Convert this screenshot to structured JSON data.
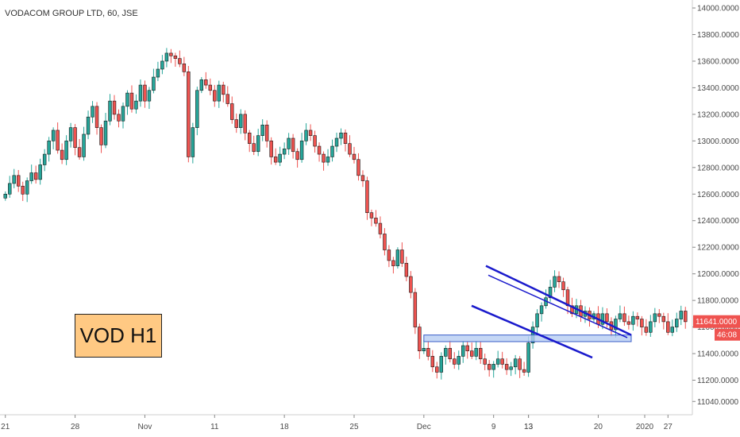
{
  "chart_data": {
    "type": "candlestick",
    "title": "VODACOM GROUP LTD, 60, JSE",
    "annotation_label": "VOD H1",
    "ylim": [
      10940,
      14060
    ],
    "y_ticks": [
      "14000.0000",
      "13800.0000",
      "13600.0000",
      "13400.0000",
      "13200.0000",
      "13000.0000",
      "12800.0000",
      "12600.0000",
      "12400.0000",
      "12200.0000",
      "12000.0000",
      "11800.0000",
      "11600.0000",
      "11400.0000",
      "11200.0000",
      "11040.0000"
    ],
    "x_ticks": [
      "21",
      "28",
      "Nov",
      "11",
      "18",
      "25",
      "Dec",
      "9",
      "13",
      "20",
      "27",
      "2020",
      "13"
    ],
    "last_price_label": "11641.0000",
    "countdown_label": "46:08",
    "colors": {
      "up": "#26a69a",
      "down": "#ef5350",
      "wick_dark": "#222222",
      "pattern_line": "#1a1acc",
      "support_zone": "#b6cdf2",
      "support_border": "#3b5fc9",
      "price_badge": "#ef5350",
      "timer_badge": "#ef5350"
    },
    "series": [
      {
        "points": [
          [
            "21",
            12600
          ],
          [
            "",
            12680
          ],
          [
            "",
            12740
          ],
          [
            "",
            12660
          ],
          [
            "",
            12600
          ],
          [
            "",
            12700
          ],
          [
            "",
            12760
          ],
          [
            "",
            12710
          ],
          [
            "",
            12820
          ],
          [
            "",
            12900
          ],
          [
            "",
            13000
          ],
          [
            "",
            13080
          ],
          [
            "",
            12930
          ],
          [
            "",
            12860
          ],
          [
            "",
            13000
          ],
          [
            "",
            13100
          ],
          [
            "28",
            12950
          ],
          [
            "",
            12880
          ],
          [
            "",
            13050
          ],
          [
            "",
            13180
          ],
          [
            "",
            13260
          ],
          [
            "",
            13100
          ],
          [
            "",
            12970
          ],
          [
            "",
            13150
          ],
          [
            "",
            13300
          ],
          [
            "",
            13200
          ],
          [
            "",
            13150
          ],
          [
            "",
            13260
          ],
          [
            "",
            13360
          ],
          [
            "",
            13240
          ],
          [
            "",
            13300
          ],
          [
            "",
            13420
          ],
          [
            "Nov",
            13300
          ],
          [
            "",
            13380
          ],
          [
            "",
            13480
          ],
          [
            "",
            13540
          ],
          [
            "",
            13600
          ],
          [
            "",
            13660
          ],
          [
            "",
            13640
          ],
          [
            "",
            13620
          ],
          [
            "",
            13580
          ],
          [
            "",
            13520
          ],
          [
            "",
            12880
          ],
          [
            "",
            13100
          ],
          [
            "",
            13380
          ],
          [
            "",
            13460
          ],
          [
            "",
            13420
          ],
          [
            "",
            13380
          ],
          [
            "11",
            13300
          ],
          [
            "",
            13420
          ],
          [
            "",
            13350
          ],
          [
            "",
            13280
          ],
          [
            "",
            13160
          ],
          [
            "",
            13100
          ],
          [
            "",
            13200
          ],
          [
            "",
            13060
          ],
          [
            "",
            12980
          ],
          [
            "",
            12920
          ],
          [
            "",
            13040
          ],
          [
            "",
            13120
          ],
          [
            "",
            13000
          ],
          [
            "",
            12880
          ],
          [
            "",
            12840
          ],
          [
            "",
            12900
          ],
          [
            "18",
            12940
          ],
          [
            "",
            13020
          ],
          [
            "",
            12920
          ],
          [
            "",
            12860
          ],
          [
            "",
            13000
          ],
          [
            "",
            13080
          ],
          [
            "",
            13040
          ],
          [
            "",
            12960
          ],
          [
            "",
            12900
          ],
          [
            "",
            12840
          ],
          [
            "",
            12880
          ],
          [
            "",
            12960
          ],
          [
            "",
            13020
          ],
          [
            "",
            13060
          ],
          [
            "",
            12980
          ],
          [
            "",
            12900
          ],
          [
            "25",
            12860
          ],
          [
            "",
            12740
          ],
          [
            "",
            12700
          ],
          [
            "",
            12460
          ],
          [
            "",
            12420
          ],
          [
            "",
            12380
          ],
          [
            "",
            12300
          ],
          [
            "",
            12180
          ],
          [
            "",
            12100
          ],
          [
            "",
            12060
          ],
          [
            "",
            12180
          ],
          [
            "",
            12080
          ],
          [
            "",
            11980
          ],
          [
            "",
            11860
          ],
          [
            "",
            11600
          ],
          [
            "",
            11420
          ],
          [
            "Dec",
            11440
          ],
          [
            "",
            11380
          ],
          [
            "",
            11300
          ],
          [
            "",
            11260
          ],
          [
            "",
            11380
          ],
          [
            "",
            11440
          ],
          [
            "",
            11360
          ],
          [
            "",
            11320
          ],
          [
            "",
            11380
          ],
          [
            "",
            11460
          ],
          [
            "",
            11420
          ],
          [
            "",
            11380
          ],
          [
            "",
            11440
          ],
          [
            "",
            11360
          ],
          [
            "",
            11320
          ],
          [
            "",
            11280
          ],
          [
            "9",
            11320
          ],
          [
            "",
            11360
          ],
          [
            "",
            11320
          ],
          [
            "",
            11280
          ],
          [
            "",
            11300
          ],
          [
            "",
            11360
          ],
          [
            "",
            11280
          ],
          [
            "",
            11260
          ],
          [
            "13",
            11480
          ],
          [
            "",
            11600
          ],
          [
            "",
            11700
          ],
          [
            "",
            11760
          ],
          [
            "",
            11820
          ],
          [
            "",
            11900
          ],
          [
            "",
            11980
          ],
          [
            "",
            11940
          ],
          [
            "",
            11880
          ],
          [
            "",
            11760
          ],
          [
            "",
            11700
          ],
          [
            "",
            11760
          ],
          [
            "",
            11680
          ],
          [
            "",
            11720
          ],
          [
            "",
            11660
          ],
          [
            "",
            11700
          ],
          [
            "20",
            11620
          ],
          [
            "",
            11700
          ],
          [
            "",
            11640
          ],
          [
            "",
            11580
          ],
          [
            "",
            11660
          ],
          [
            "",
            11700
          ],
          [
            "",
            11640
          ],
          [
            "",
            11620
          ],
          [
            "",
            11680
          ],
          [
            "",
            11660
          ],
          [
            "",
            11600
          ],
          [
            "",
            11560
          ],
          [
            "",
            11640
          ],
          [
            "",
            11700
          ],
          [
            "",
            11680
          ],
          [
            "",
            11640
          ],
          [
            "27",
            11560
          ],
          [
            "",
            11600
          ],
          [
            "",
            11660
          ],
          [
            "",
            11720
          ],
          [
            "",
            11640
          ]
        ]
      }
    ]
  }
}
